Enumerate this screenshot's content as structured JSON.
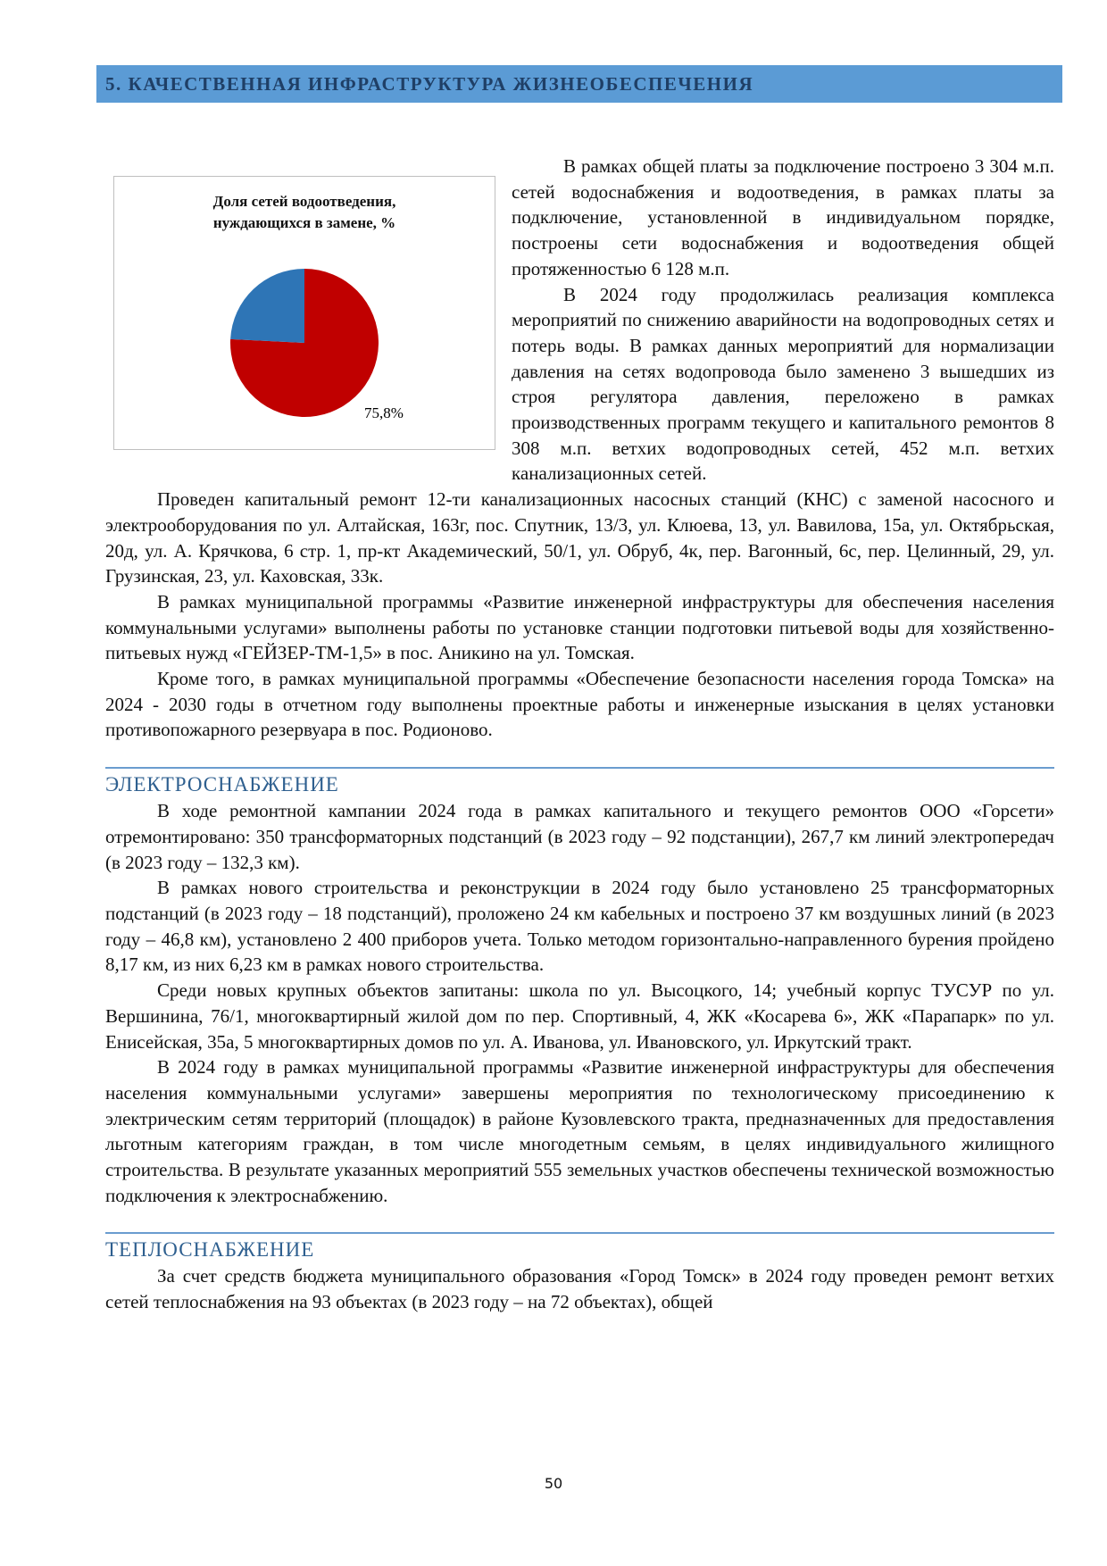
{
  "header": {
    "title": "5. КАЧЕСТВЕННАЯ ИНФРАСТРУКТУРА ЖИЗНЕОБЕСПЕЧЕНИЯ"
  },
  "chart_data": {
    "type": "pie",
    "title": "Доля сетей водоотведения, нуждающихся в замене, %",
    "title_lines": [
      "Доля сетей водоотведения,",
      "нуждающихся в замене, %"
    ],
    "values": [
      75.8,
      24.2
    ],
    "colors": [
      "#c00000",
      "#2e75b6"
    ],
    "data_labels": [
      "75,8%"
    ]
  },
  "water": {
    "paragraphs": [
      "В рамках общей платы за подключение построено 3 304 м.п. сетей водоснабжения и водоотведения, в рамках платы за подключение, установленной в индивидуальном порядке, построены сети водоснабжения и водоотведения общей протяженностью 6 128 м.п.",
      "В 2024 году продолжилась реализация комплекса мероприятий по снижению аварийности на водопроводных сетях и потерь воды. В рамках данных мероприятий для нормализации давления на сетях водопровода было заменено 3 вышедших из строя регулятора давления, переложено в рамках производственных программ текущего и капитального ремонтов 8 308 м.п. ветхих водопроводных сетей, 452 м.п. ветхих канализационных сетей.",
      "Проведен капитальный ремонт 12-ти канализационных насосных станций (КНС) с заменой насосного и электрооборудования по ул. Алтайская, 163г, пос. Спутник, 13/3, ул. Клюева, 13, ул. Вавилова, 15а, ул. Октябрьская, 20д, ул. А. Крячкова, 6 стр. 1, пр-кт Академический, 50/1, ул. Обруб, 4к, пер. Вагонный, 6с, пер. Целинный, 29, ул. Грузинская, 23, ул. Каховская, 33к.",
      "В рамках муниципальной программы «Развитие инженерной инфраструктуры для обеспечения населения коммунальными услугами» выполнены работы по установке станции подготовки питьевой воды для хозяйственно-питьевых нужд «ГЕЙЗЕР-ТМ-1,5» в пос. Аникино на ул. Томская.",
      "Кроме того, в рамках муниципальной программы «Обеспечение безопасности населения города Томска» на 2024 - 2030 годы в отчетном году выполнены проектные работы и инженерные изыскания в целях установки противопожарного резервуара в пос. Родионово."
    ]
  },
  "electricity": {
    "heading": "ЭЛЕКТРОСНАБЖЕНИЕ",
    "paragraphs": [
      "В ходе ремонтной кампании 2024 года в рамках капитального и текущего ремонтов ООО «Горсети» отремонтировано: 350 трансформаторных подстанций (в 2023 году – 92 подстанции), 267,7 км линий электропередач (в 2023 году – 132,3 км).",
      "В рамках нового строительства и реконструкции в 2024 году было установлено 25 трансформаторных подстанций (в 2023 году – 18 подстанций), проложено 24 км кабельных и построено 37 км воздушных линий (в 2023 году – 46,8 км), установлено 2 400 приборов учета. Только методом горизонтально-направленного бурения пройдено 8,17 км, из них 6,23 км в рамках нового строительства.",
      "Среди новых крупных объектов запитаны: школа по ул. Высоцкого, 14; учебный корпус ТУСУР по ул. Вершинина, 76/1, многоквартирный жилой дом по пер. Спортивный, 4, ЖК «Косарева 6», ЖК «Парапарк» по ул. Енисейская, 35а, 5 многоквартирных домов по ул. А. Иванова, ул. Ивановского, ул. Иркутский тракт.",
      "В 2024 году в рамках муниципальной программы «Развитие инженерной инфраструктуры для обеспечения населения коммунальными услугами» завершены мероприятия по технологическому присоединению к электрическим сетям территорий (площадок) в районе Кузовлевского тракта, предназначенных для предоставления льготным категориям граждан, в том числе многодетным семьям, в целях индивидуального жилищного строительства. В результате указанных мероприятий 555 земельных участков обеспечены технической возможностью подключения к электроснабжению."
    ]
  },
  "heat": {
    "heading": "ТЕПЛОСНАБЖЕНИЕ",
    "paragraphs": [
      "За счет средств бюджета муниципального образования «Город Томск» в 2024 году проведен ремонт ветхих сетей теплоснабжения на 93 объектах (в 2023 году – на 72 объектах), общей"
    ]
  },
  "footer": {
    "page_number": "50"
  }
}
